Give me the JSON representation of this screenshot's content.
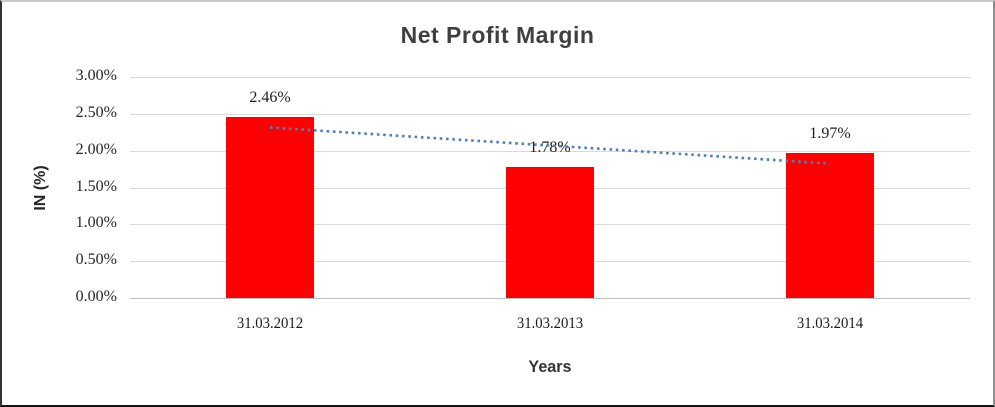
{
  "chart_data": {
    "type": "bar",
    "title": "Net Profit Margin",
    "xlabel": "Years",
    "ylabel": "IN (%)",
    "categories": [
      "31.03.2012",
      "31.03.2013",
      "31.03.2014"
    ],
    "series": [
      {
        "name": "Net Profit Margin",
        "values": [
          2.46,
          1.78,
          1.97
        ]
      }
    ],
    "data_labels": [
      "2.46%",
      "1.78%",
      "1.97%"
    ],
    "ytick_labels": [
      "0.00%",
      "0.50%",
      "1.00%",
      "1.50%",
      "2.00%",
      "2.50%",
      "3.00%"
    ],
    "ytick_values": [
      0,
      0.5,
      1.0,
      1.5,
      2.0,
      2.5,
      3.0
    ],
    "ylim": [
      0,
      3.0
    ],
    "grid": true,
    "legend": "none",
    "trendline": {
      "type": "linear",
      "style": "dotted",
      "fitted_endpoints": [
        2.315,
        1.825
      ]
    },
    "colors": {
      "bar": "#ff0000",
      "trendline": "#4c80c0",
      "gridline": "#d9d9d9",
      "axis_line": "#bfbfbf",
      "title_text": "#3f3f3f",
      "axis_text": "#262626"
    }
  }
}
